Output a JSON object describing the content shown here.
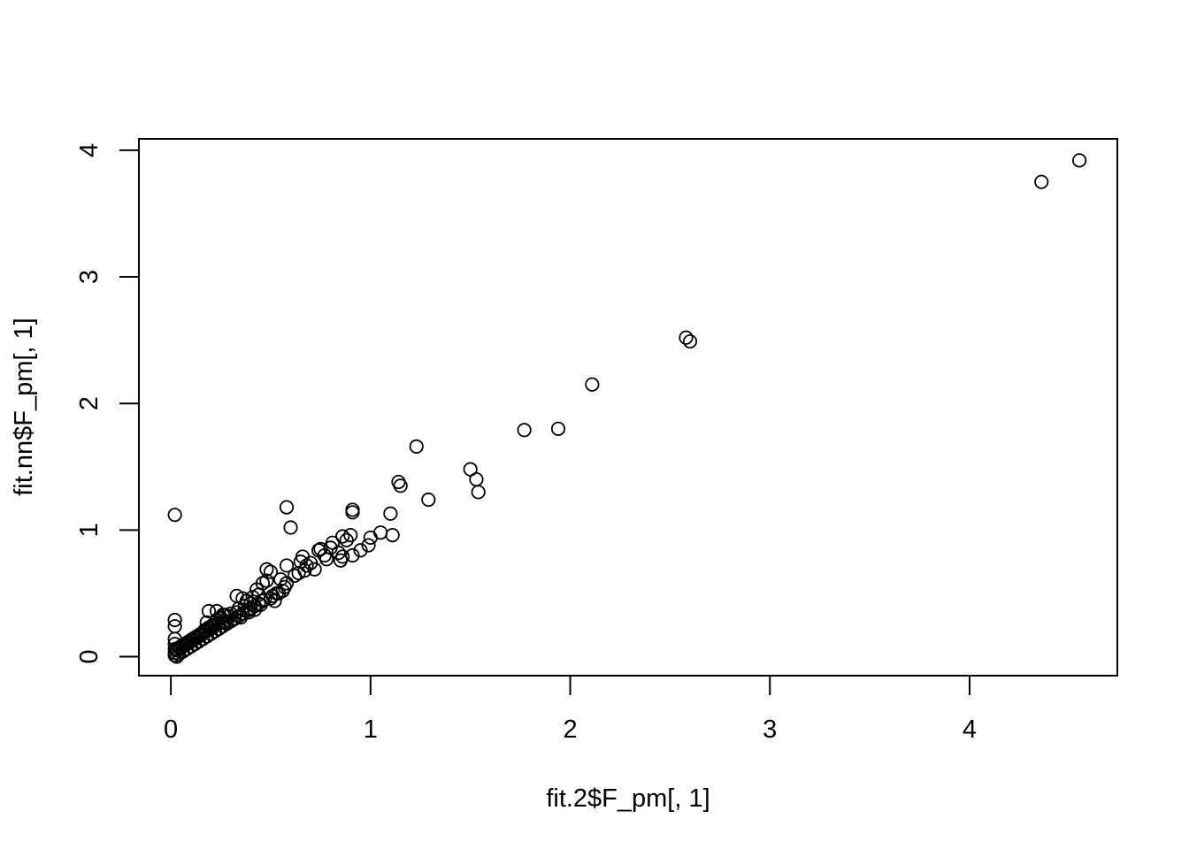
{
  "chart_data": {
    "type": "scatter",
    "title": "",
    "xlabel": "fit.2$F_pm[, 1]",
    "ylabel": "fit.nn$F_pm[, 1]",
    "xlim": [
      -0.16,
      4.74
    ],
    "ylim": [
      -0.15,
      4.09
    ],
    "xticks": [
      0,
      1,
      2,
      3,
      4
    ],
    "yticks": [
      0,
      1,
      2,
      3,
      4
    ],
    "grid": false,
    "legend": "none",
    "marker": "open-circle",
    "x": [
      4.55,
      4.36,
      2.58,
      2.6,
      2.11,
      1.77,
      1.94,
      1.23,
      1.29,
      1.5,
      1.53,
      1.54,
      1.14,
      1.15,
      1.1,
      1.11,
      1.05,
      1.0,
      0.99,
      0.95,
      0.91,
      0.91,
      0.9,
      0.91,
      0.88,
      0.86,
      0.86,
      0.85,
      0.84,
      0.81,
      0.8,
      0.78,
      0.77,
      0.75,
      0.74,
      0.72,
      0.7,
      0.68,
      0.67,
      0.66,
      0.65,
      0.64,
      0.62,
      0.6,
      0.58,
      0.58,
      0.58,
      0.57,
      0.56,
      0.55,
      0.53,
      0.52,
      0.51,
      0.5,
      0.48,
      0.48,
      0.47,
      0.46,
      0.45,
      0.44,
      0.43,
      0.42,
      0.41,
      0.4,
      0.39,
      0.38,
      0.37,
      0.36,
      0.35,
      0.34,
      0.33,
      0.33,
      0.32,
      0.31,
      0.3,
      0.29,
      0.28,
      0.27,
      0.26,
      0.25,
      0.24,
      0.23,
      0.22,
      0.21,
      0.2,
      0.19,
      0.18,
      0.18,
      0.17,
      0.16,
      0.15,
      0.14,
      0.13,
      0.12,
      0.11,
      0.1,
      0.09,
      0.08,
      0.07,
      0.06,
      0.05,
      0.04,
      0.03,
      0.02,
      0.02,
      0.02,
      0.02,
      0.02,
      0.02,
      0.02,
      0.02,
      0.03,
      0.04,
      0.06,
      0.08,
      0.1,
      0.12,
      0.14,
      0.16,
      0.18,
      0.2,
      0.22,
      0.24,
      0.26,
      0.28,
      0.3,
      0.32,
      0.34,
      0.36,
      0.38,
      0.4,
      0.42,
      0.44,
      0.46,
      0.5,
      0.54,
      0.21,
      0.23,
      0.19,
      0.25,
      0.27,
      0.03,
      0.05,
      0.07,
      0.09,
      0.11,
      0.13,
      0.15,
      0.17
    ],
    "y": [
      3.92,
      3.75,
      2.52,
      2.49,
      2.15,
      1.79,
      1.8,
      1.66,
      1.24,
      1.48,
      1.4,
      1.3,
      1.38,
      1.35,
      1.13,
      0.96,
      0.98,
      0.94,
      0.88,
      0.84,
      1.16,
      1.14,
      0.96,
      0.8,
      0.92,
      0.95,
      0.79,
      0.76,
      0.82,
      0.9,
      0.86,
      0.77,
      0.8,
      0.85,
      0.84,
      0.69,
      0.74,
      0.72,
      0.68,
      0.79,
      0.75,
      0.66,
      0.64,
      1.02,
      1.18,
      0.72,
      0.58,
      0.55,
      0.52,
      0.61,
      0.5,
      0.44,
      0.48,
      0.67,
      0.69,
      0.6,
      0.45,
      0.58,
      0.41,
      0.49,
      0.53,
      0.37,
      0.47,
      0.42,
      0.35,
      0.44,
      0.4,
      0.46,
      0.31,
      0.38,
      0.48,
      0.35,
      0.3,
      0.29,
      0.34,
      0.32,
      0.27,
      0.28,
      0.33,
      0.3,
      0.26,
      0.36,
      0.25,
      0.24,
      0.22,
      0.36,
      0.21,
      0.27,
      0.2,
      0.19,
      0.18,
      0.17,
      0.16,
      0.15,
      0.14,
      0.13,
      0.12,
      0.11,
      0.1,
      0.09,
      0.08,
      0.07,
      0.06,
      1.12,
      0.29,
      0.24,
      0.14,
      0.1,
      0.06,
      0.03,
      0.01,
      0.0,
      0.02,
      0.04,
      0.06,
      0.08,
      0.1,
      0.12,
      0.14,
      0.16,
      0.18,
      0.2,
      0.22,
      0.24,
      0.26,
      0.28,
      0.3,
      0.32,
      0.34,
      0.36,
      0.38,
      0.4,
      0.42,
      0.44,
      0.46,
      0.5,
      0.25,
      0.29,
      0.23,
      0.31,
      0.33,
      0.05,
      0.07,
      0.09,
      0.11,
      0.13,
      0.15,
      0.17,
      0.21
    ]
  }
}
